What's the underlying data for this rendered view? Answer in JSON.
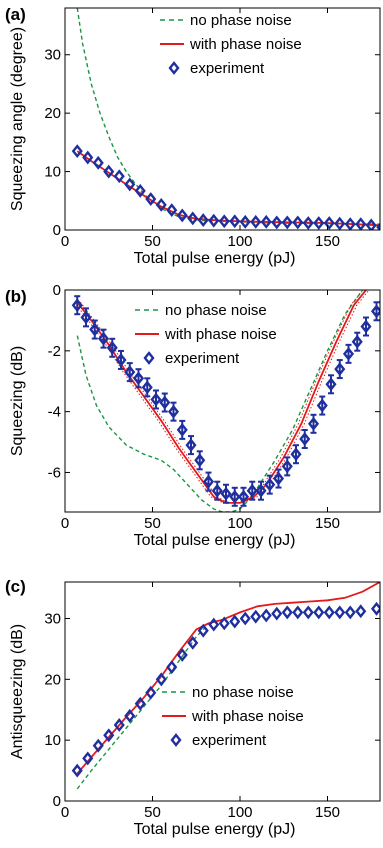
{
  "colors": {
    "no_phase_noise": "#1a9641",
    "with_phase_noise": "#e31a1c",
    "experiment": "#1f2f9e",
    "axis": "#000000"
  },
  "legend_markers": {
    "no_phase_noise": "dashed-line",
    "with_phase_noise": "solid-line",
    "experiment": "diamond-marker"
  },
  "chart_data": [
    {
      "panel": "(a)",
      "type": "line",
      "xlabel": "Total pulse energy (pJ)",
      "ylabel": "Squeezing angle (degree)",
      "xlim": [
        0,
        180
      ],
      "ylim": [
        0,
        38
      ],
      "xticks": [
        0,
        50,
        100,
        150
      ],
      "yticks": [
        0,
        10,
        20,
        30
      ],
      "legend": {
        "position": "top-right",
        "entries": [
          "no phase noise",
          "with phase noise",
          "experiment"
        ]
      },
      "series": [
        {
          "name": "no phase noise",
          "style": "dashed",
          "x": [
            7,
            10,
            15,
            20,
            25,
            30,
            35,
            40,
            45,
            50,
            55,
            60,
            65,
            70,
            80,
            100,
            120,
            150,
            180
          ],
          "y": [
            38,
            32,
            25,
            20,
            16,
            12.5,
            10,
            8,
            6.2,
            4.8,
            3.7,
            2.9,
            2.3,
            1.9,
            1.6,
            1.4,
            1.2,
            1.1,
            1.0
          ]
        },
        {
          "name": "with phase noise",
          "style": "solid",
          "x": [
            7,
            15,
            25,
            35,
            45,
            55,
            65,
            75,
            90,
            110,
            130,
            150,
            180
          ],
          "y": [
            13.5,
            11.8,
            9.8,
            7.8,
            5.9,
            4.0,
            2.6,
            1.9,
            1.6,
            1.4,
            1.3,
            1.2,
            0.8
          ]
        },
        {
          "name": "experiment",
          "style": "markers",
          "x": [
            7,
            13,
            19,
            25,
            31,
            37,
            43,
            49,
            55,
            61,
            67,
            73,
            79,
            85,
            91,
            97,
            103,
            109,
            115,
            121,
            127,
            133,
            139,
            145,
            151,
            157,
            163,
            169,
            175,
            181
          ],
          "y": [
            13.5,
            12.4,
            11.5,
            10.0,
            9.2,
            7.8,
            6.7,
            5.3,
            4.3,
            3.4,
            2.5,
            2.0,
            1.7,
            1.6,
            1.5,
            1.5,
            1.4,
            1.4,
            1.4,
            1.3,
            1.3,
            1.3,
            1.2,
            1.2,
            1.2,
            1.1,
            1.0,
            1.0,
            0.8,
            0.5
          ]
        }
      ]
    },
    {
      "panel": "(b)",
      "type": "line",
      "xlabel": "Total pulse energy (pJ)",
      "ylabel": "Squeezing (dB)",
      "xlim": [
        0,
        180
      ],
      "ylim": [
        -7.3,
        0
      ],
      "xticks": [
        0,
        50,
        100,
        150
      ],
      "yticks": [
        0,
        -2,
        -4,
        -6
      ],
      "legend": {
        "position": "top-right",
        "entries": [
          "no phase noise",
          "with phase noise",
          "experiment"
        ]
      },
      "series": [
        {
          "name": "no phase noise",
          "style": "dashed",
          "x": [
            7,
            12,
            18,
            25,
            35,
            45,
            55,
            62,
            70,
            78,
            85,
            90,
            95,
            100,
            105,
            110,
            120,
            130,
            140,
            150,
            160,
            170,
            175
          ],
          "y": [
            -1.5,
            -2.8,
            -3.8,
            -4.5,
            -5.1,
            -5.4,
            -5.6,
            -5.9,
            -6.4,
            -6.9,
            -7.2,
            -7.3,
            -7.3,
            -7.2,
            -6.9,
            -6.5,
            -5.6,
            -4.6,
            -3.3,
            -2.0,
            -0.8,
            0.0,
            0.2
          ]
        },
        {
          "name": "with phase noise",
          "style": "solid",
          "x": [
            7,
            15,
            25,
            35,
            45,
            55,
            65,
            75,
            85,
            92,
            100,
            108,
            115,
            125,
            135,
            145,
            155,
            165,
            172
          ],
          "y": [
            -0.4,
            -1.0,
            -1.8,
            -2.7,
            -3.5,
            -4.3,
            -5.2,
            -6.0,
            -6.8,
            -7.0,
            -7.0,
            -6.8,
            -6.4,
            -5.5,
            -4.4,
            -3.0,
            -1.7,
            -0.5,
            0.0
          ]
        },
        {
          "name": "experiment",
          "style": "markers",
          "x": [
            7,
            12,
            17,
            22,
            27,
            32,
            37,
            42,
            47,
            52,
            57,
            62,
            67,
            72,
            77,
            82,
            87,
            92,
            97,
            102,
            107,
            112,
            117,
            122,
            127,
            132,
            137,
            142,
            147,
            152,
            157,
            162,
            167,
            172,
            178
          ],
          "y": [
            -0.5,
            -0.9,
            -1.3,
            -1.6,
            -1.9,
            -2.3,
            -2.7,
            -2.9,
            -3.2,
            -3.6,
            -3.7,
            -4.0,
            -4.6,
            -5.1,
            -5.6,
            -6.3,
            -6.6,
            -6.7,
            -6.8,
            -6.8,
            -6.6,
            -6.6,
            -6.4,
            -6.2,
            -5.8,
            -5.4,
            -4.9,
            -4.4,
            -3.8,
            -3.1,
            -2.6,
            -2.1,
            -1.7,
            -1.2,
            -0.7
          ]
        }
      ]
    },
    {
      "panel": "(c)",
      "type": "line",
      "xlabel": "Total pulse energy (pJ)",
      "ylabel": "Antisqueezing (dB)",
      "xlim": [
        0,
        180
      ],
      "ylim": [
        0,
        36
      ],
      "xticks": [
        0,
        50,
        100,
        150
      ],
      "yticks": [
        0,
        10,
        20,
        30
      ],
      "legend": {
        "position": "bottom-right",
        "entries": [
          "no phase noise",
          "with phase noise",
          "experiment"
        ]
      },
      "series": [
        {
          "name": "no phase noise",
          "style": "dashed",
          "x": [
            7,
            15,
            25,
            35,
            45,
            55,
            65,
            75,
            80
          ],
          "y": [
            2,
            5,
            8.5,
            12,
            15.5,
            19,
            23,
            27,
            28.5
          ]
        },
        {
          "name": "with phase noise",
          "style": "solid",
          "x": [
            7,
            15,
            25,
            35,
            45,
            55,
            65,
            75,
            82,
            90,
            100,
            110,
            120,
            130,
            140,
            150,
            160,
            170,
            180
          ],
          "y": [
            4.5,
            7.2,
            10.5,
            13.8,
            17,
            20.5,
            24.5,
            28.2,
            29.2,
            29.8,
            31.0,
            32.0,
            32.4,
            32.6,
            32.8,
            33.0,
            33.4,
            34.4,
            36.0
          ]
        },
        {
          "name": "experiment",
          "style": "markers",
          "x": [
            7,
            13,
            19,
            25,
            31,
            37,
            43,
            49,
            55,
            61,
            67,
            73,
            79,
            85,
            91,
            97,
            103,
            109,
            115,
            121,
            127,
            133,
            139,
            145,
            151,
            157,
            163,
            169,
            178
          ],
          "y": [
            5.0,
            7.0,
            9.1,
            10.8,
            12.5,
            14.0,
            16.0,
            17.8,
            20.0,
            22.0,
            24.0,
            26.0,
            28.0,
            29.0,
            29.2,
            29.5,
            30.0,
            30.3,
            30.5,
            30.8,
            31.0,
            31.0,
            31.0,
            31.0,
            31.0,
            31.0,
            31.0,
            31.2,
            31.6
          ]
        }
      ]
    }
  ]
}
